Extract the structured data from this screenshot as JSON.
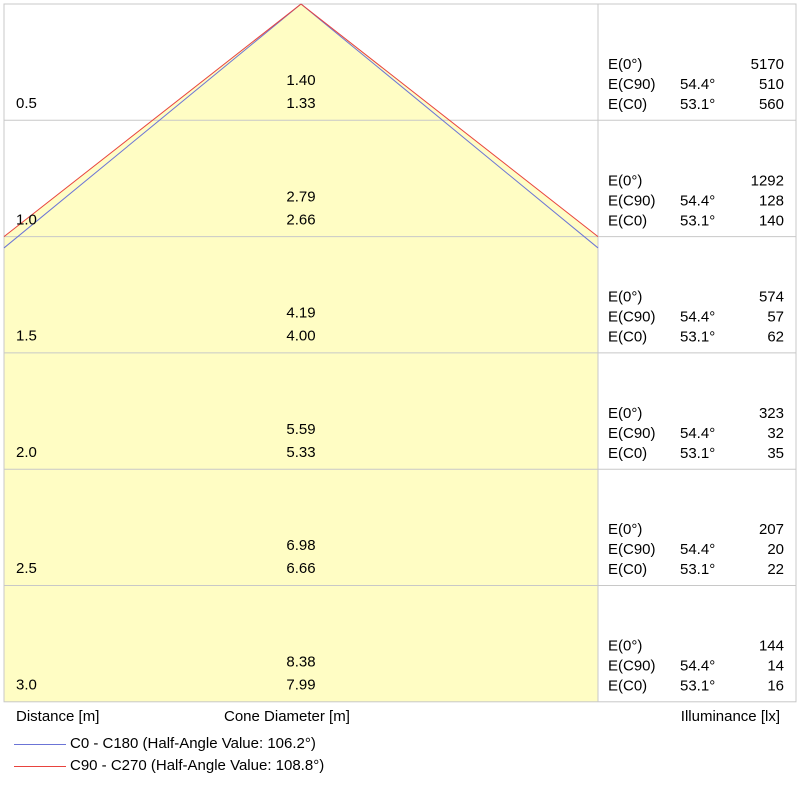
{
  "chart_data": {
    "type": "cone-diagram",
    "xlabel": "Distance [m]",
    "center_label": "Cone Diameter [m]",
    "right_label": "Illuminance [lx]",
    "rows": [
      {
        "distance": "0.5",
        "d_c90": "1.40",
        "d_c0": "1.33",
        "e0_label": "E(0°)",
        "e0": "5170",
        "c90_label": "E(C90)",
        "c90_angle": "54.4°",
        "c90": "510",
        "c0_label": "E(C0)",
        "c0_angle": "53.1°",
        "c0": "560"
      },
      {
        "distance": "1.0",
        "d_c90": "2.79",
        "d_c0": "2.66",
        "e0_label": "E(0°)",
        "e0": "1292",
        "c90_label": "E(C90)",
        "c90_angle": "54.4°",
        "c90": "128",
        "c0_label": "E(C0)",
        "c0_angle": "53.1°",
        "c0": "140"
      },
      {
        "distance": "1.5",
        "d_c90": "4.19",
        "d_c0": "4.00",
        "e0_label": "E(0°)",
        "e0": "574",
        "c90_label": "E(C90)",
        "c90_angle": "54.4°",
        "c90": "57",
        "c0_label": "E(C0)",
        "c0_angle": "53.1°",
        "c0": "62"
      },
      {
        "distance": "2.0",
        "d_c90": "5.59",
        "d_c0": "5.33",
        "e0_label": "E(0°)",
        "e0": "323",
        "c90_label": "E(C90)",
        "c90_angle": "54.4°",
        "c90": "32",
        "c0_label": "E(C0)",
        "c0_angle": "53.1°",
        "c0": "35"
      },
      {
        "distance": "2.5",
        "d_c90": "6.98",
        "d_c0": "6.66",
        "e0_label": "E(0°)",
        "e0": "207",
        "c90_label": "E(C90)",
        "c90_angle": "54.4°",
        "c90": "20",
        "c0_label": "E(C0)",
        "c0_angle": "53.1°",
        "c0": "22"
      },
      {
        "distance": "3.0",
        "d_c90": "8.38",
        "d_c0": "7.99",
        "e0_label": "E(0°)",
        "e0": "144",
        "c90_label": "E(C90)",
        "c90_angle": "54.4°",
        "c90": "14",
        "c0_label": "E(C0)",
        "c0_angle": "53.1°",
        "c0": "16"
      }
    ],
    "series": [
      {
        "name": "C0 - C180 (Half-Angle Value: 106.2°)",
        "half_angle": 106.2,
        "color": "#6b74d6"
      },
      {
        "name": "C90 - C270 (Half-Angle Value: 108.8°)",
        "half_angle": 108.8,
        "color": "#e8433e"
      }
    ],
    "fill_color": "#fffdc4",
    "grid_color": "#c8c8c8"
  }
}
